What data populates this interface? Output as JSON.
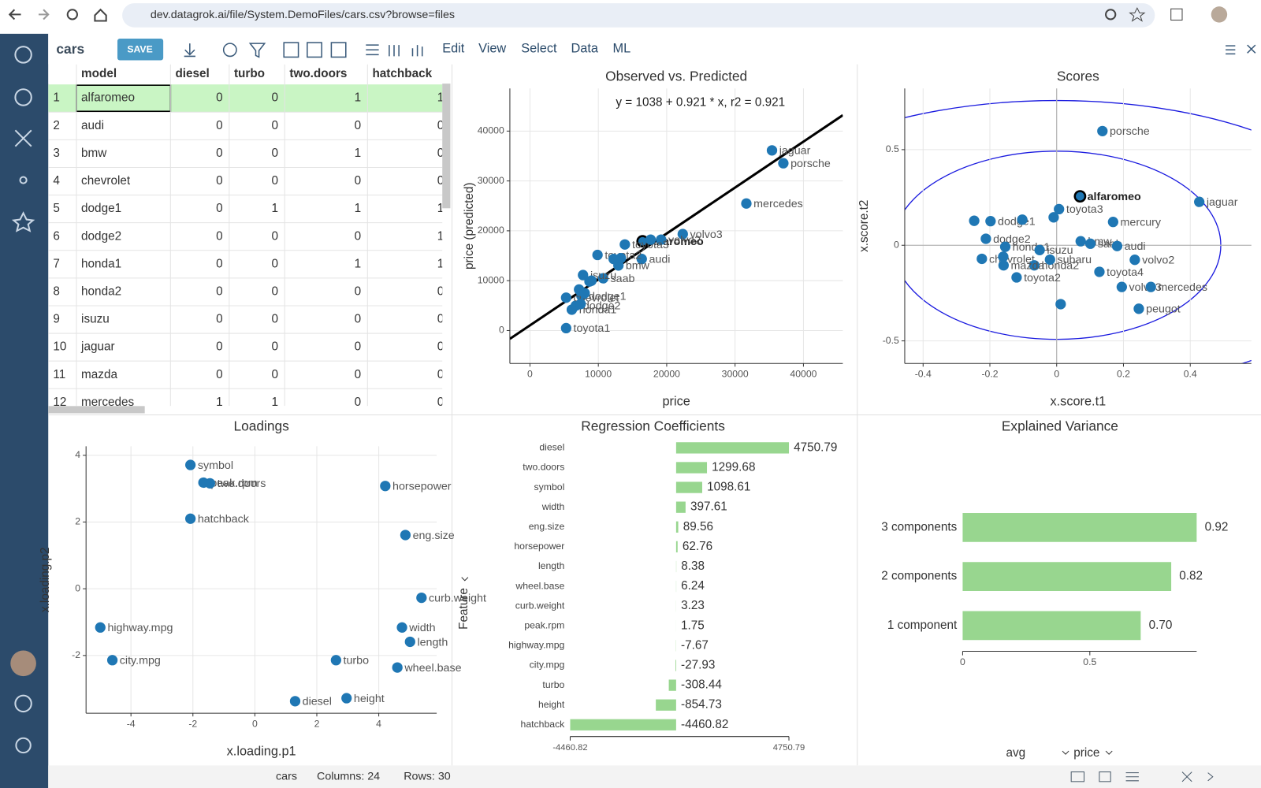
{
  "browser": {
    "url": "dev.datagrok.ai/file/System.DemoFiles/cars.csv?browse=files"
  },
  "toolbar": {
    "table": "cars",
    "save": "SAVE",
    "menu": [
      "Edit",
      "View",
      "Select",
      "Data",
      "ML"
    ]
  },
  "grid": {
    "columns": [
      "model",
      "diesel",
      "turbo",
      "two.doors",
      "hatchback"
    ],
    "rows": [
      [
        1,
        "alfaromeo",
        0,
        0,
        1,
        1
      ],
      [
        2,
        "audi",
        0,
        0,
        0,
        0
      ],
      [
        3,
        "bmw",
        0,
        0,
        1,
        0
      ],
      [
        4,
        "chevrolet",
        0,
        0,
        0,
        0
      ],
      [
        5,
        "dodge1",
        0,
        1,
        1,
        1
      ],
      [
        6,
        "dodge2",
        0,
        0,
        0,
        1
      ],
      [
        7,
        "honda1",
        0,
        0,
        1,
        1
      ],
      [
        8,
        "honda2",
        0,
        0,
        0,
        0
      ],
      [
        9,
        "isuzu",
        0,
        0,
        0,
        0
      ],
      [
        10,
        "jaguar",
        0,
        0,
        0,
        0
      ],
      [
        11,
        "mazda",
        0,
        0,
        0,
        0
      ],
      [
        12,
        "mercedes",
        1,
        1,
        0,
        0
      ]
    ]
  },
  "observed_vs_predicted": {
    "type": "scatter",
    "title": "Observed vs. Predicted",
    "equation": "y = 1038 + 0.921 * x,    r2 = 0.921",
    "intercept": 1038,
    "slope": 0.921,
    "x_label": "price",
    "y_label": "price (predicted)",
    "xlim": [
      -2940,
      45760
    ],
    "ylim": [
      -6600,
      48550
    ],
    "xticks": [
      0,
      10000,
      20000,
      30000,
      40000
    ],
    "yticks": [
      0,
      10000,
      20000,
      30000,
      40000
    ],
    "color": "#1f77b4",
    "labels": [
      "alfaromeo",
      "jaguar",
      "porsche",
      "mercedes",
      "volvo3",
      "volvo2",
      "audi",
      "bmw",
      "saab",
      "toyota3",
      "toyota2",
      "isuzu",
      "dodge1",
      "honda1",
      "dodge2",
      "chevrolet",
      "toyota1",
      null,
      null,
      null,
      null,
      null,
      null,
      null,
      null
    ],
    "x": [
      16470,
      35400,
      37060,
      31650,
      22350,
      19180,
      16350,
      12940,
      10710,
      13880,
      9880,
      7760,
      7530,
      6120,
      6710,
      5290,
      5290,
      8710,
      7180,
      7410,
      12240,
      13290,
      17650,
      8000,
      9000
    ],
    "y": [
      17900,
      36130,
      33550,
      25480,
      19350,
      18230,
      14350,
      13060,
      10480,
      17260,
      15160,
      11130,
      6940,
      4190,
      5000,
      6600,
      480,
      9840,
      8230,
      5320,
      14350,
      14520,
      18230,
      7500,
      10000
    ]
  },
  "scores": {
    "type": "scatter",
    "title": "Scores",
    "x_label": "x.score.t1",
    "y_label": "x.score.t2",
    "xlim": [
      -0.455,
      0.583
    ],
    "ylim": [
      -0.618,
      0.82
    ],
    "xticks": [
      -0.4,
      -0.2,
      0,
      0.2,
      0.4
    ],
    "yticks": [
      -0.5,
      0,
      0.5
    ],
    "color": "#1f77b4",
    "labels": [
      "alfaromeo",
      "porsche",
      "jaguar",
      "toyota3",
      "mercury",
      "dodge1",
      "bmw",
      "saab",
      "audi",
      "dodge2",
      "honda1",
      "isuzu",
      "volvo2",
      "chevrolet",
      "honda2",
      "mazda",
      "volvo3",
      "mercedes",
      "subaru",
      "toyota2",
      "toyota4",
      "peugot",
      null,
      null,
      null,
      null,
      null
    ],
    "x": [
      0.07,
      0.137,
      0.427,
      0.007,
      0.169,
      -0.198,
      0.072,
      0.101,
      0.181,
      -0.212,
      -0.154,
      -0.051,
      0.234,
      -0.224,
      -0.067,
      -0.159,
      0.195,
      0.282,
      -0.02,
      -0.12,
      0.128,
      0.246,
      -0.247,
      -0.103,
      -0.009,
      -0.16,
      0.012
    ],
    "y": [
      0.256,
      0.597,
      0.227,
      0.189,
      0.122,
      0.126,
      0.021,
      0.008,
      -0.004,
      0.034,
      -0.008,
      -0.025,
      -0.076,
      -0.071,
      -0.105,
      -0.105,
      -0.218,
      -0.218,
      -0.075,
      -0.168,
      -0.139,
      -0.332,
      0.128,
      0.134,
      0.146,
      -0.06,
      -0.308
    ]
  },
  "loadings": {
    "type": "scatter",
    "title": "Loadings",
    "x_label": "x.loading.p1",
    "y_label": "x.loading.p2",
    "xlim": [
      -5.45,
      5.87
    ],
    "ylim": [
      -3.73,
      4.27
    ],
    "xticks": [
      -4,
      -2,
      0,
      2,
      4
    ],
    "yticks": [
      -2,
      0,
      2,
      4
    ],
    "color": "#1f77b4",
    "labels": [
      "symbol",
      "peak.rpm",
      "two.doors",
      "hatchback",
      "horsepower",
      "eng.size",
      "curb.weight",
      "width",
      "length",
      "turbo",
      "wheel.base",
      "height",
      "diesel",
      "highway.mpg",
      "city.mpg"
    ],
    "x": [
      -2.08,
      -1.66,
      -1.45,
      -2.08,
      4.21,
      4.86,
      5.38,
      4.75,
      5.01,
      2.62,
      4.6,
      2.96,
      1.3,
      -4.99,
      -4.6
    ],
    "y": [
      3.71,
      3.18,
      3.16,
      2.1,
      3.08,
      1.61,
      -0.27,
      -1.16,
      -1.59,
      -2.14,
      -2.36,
      -3.28,
      -3.37,
      -1.16,
      -2.14
    ]
  },
  "regression_coefficients": {
    "type": "bar",
    "title": "Regression Coefficients",
    "y_label": "Feature",
    "categories": [
      "diesel",
      "two.doors",
      "symbol",
      "width",
      "eng.size",
      "horsepower",
      "length",
      "wheel.base",
      "curb.weight",
      "peak.rpm",
      "highway.mpg",
      "city.mpg",
      "turbo",
      "height",
      "hatchback"
    ],
    "values": [
      4750.79,
      1299.68,
      1098.61,
      397.61,
      89.56,
      62.76,
      8.38,
      6.24,
      3.23,
      1.75,
      -7.67,
      -27.93,
      -308.44,
      -854.73,
      -4460.82
    ],
    "xlim": [
      -4460.82,
      4750.79
    ],
    "xticks": [
      -4460.82,
      4750.79
    ],
    "color": "#98d68f"
  },
  "explained_variance": {
    "type": "bar",
    "title": "Explained Variance",
    "categories": [
      "3 components",
      "2 components",
      "1 component"
    ],
    "values": [
      0.92,
      0.82,
      0.7
    ],
    "value_labels": [
      "0.92",
      "0.82",
      "0.70"
    ],
    "xlim": [
      0,
      0.92
    ],
    "xticks": [
      0,
      0.5
    ],
    "color": "#98d68f",
    "aggregation": "avg",
    "column": "price"
  },
  "status": {
    "table": "cars",
    "columns": "Columns: 24",
    "rows": "Rows: 30"
  }
}
